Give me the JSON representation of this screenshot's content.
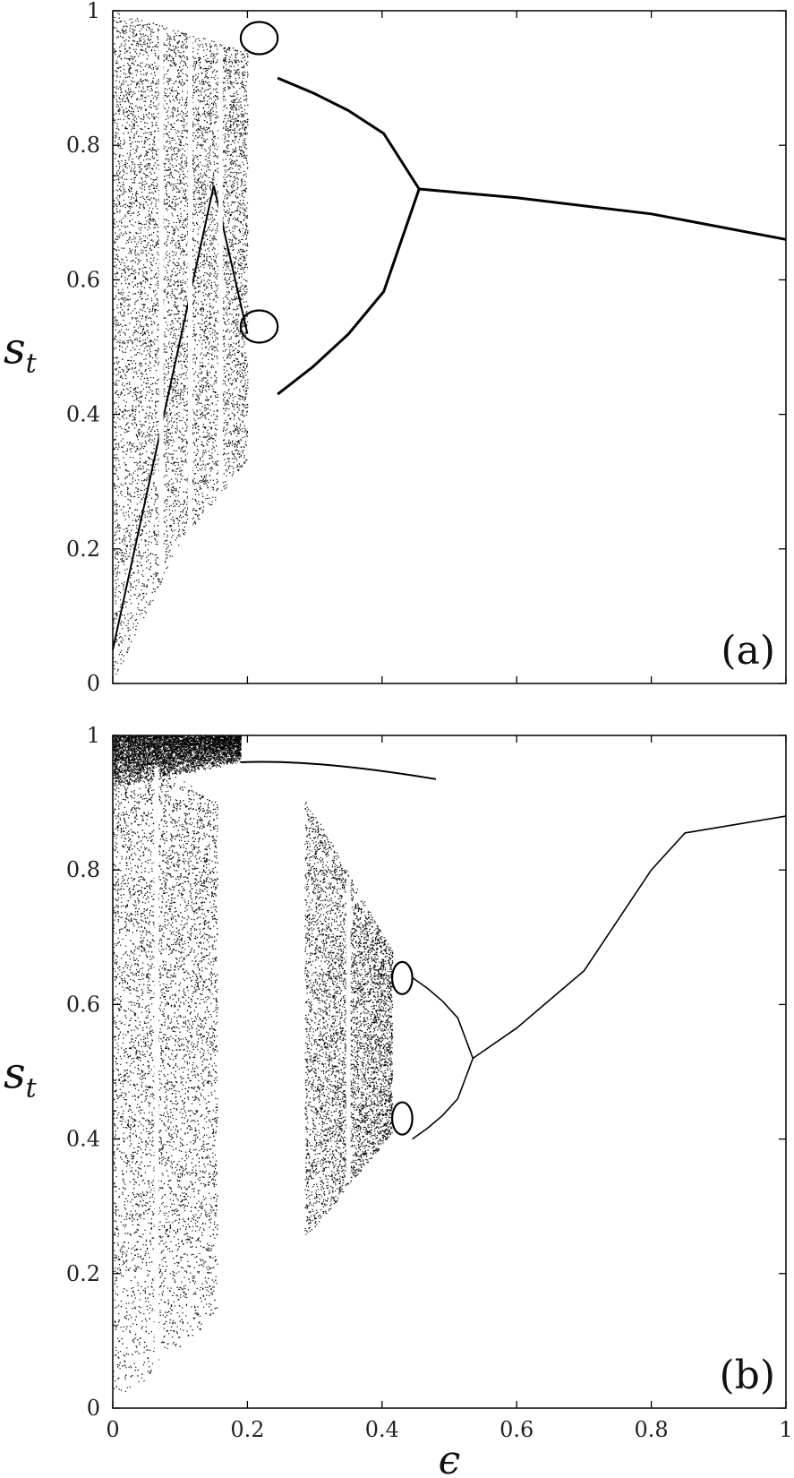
{
  "chart_data": [
    {
      "type": "scatter",
      "panel_label": "(a)",
      "ylabel": "s_t",
      "xlim": [
        0,
        1
      ],
      "ylim": [
        0,
        1
      ],
      "x_ticks": [
        0,
        0.2,
        0.4,
        0.6,
        0.8,
        1
      ],
      "x_tick_labels": [],
      "y_ticks": [
        0,
        0.2,
        0.4,
        0.6,
        0.8,
        1
      ],
      "y_tick_labels": [
        "0",
        "0.2",
        "0.4",
        "0.6",
        "0.8",
        "1"
      ],
      "chaotic_band": {
        "x_range": [
          0,
          0.2
        ],
        "upper": [
          [
            0,
            1.0
          ],
          [
            0.2,
            0.94
          ]
        ],
        "lower": [
          [
            0,
            0.0
          ],
          [
            0.1,
            0.21
          ],
          [
            0.2,
            0.33
          ]
        ]
      },
      "periodic_windows_x": [
        0.072,
        0.115,
        0.16
      ],
      "period_4": {
        "x_range": [
          0.19,
          0.245
        ],
        "upper": [
          0.97,
          0.86
        ],
        "lower": [
          0.52,
          0.34
        ]
      },
      "period_2": {
        "x_range": [
          0.245,
          0.455
        ],
        "upper_start": 0.9,
        "lower_start": 0.43,
        "merge_y": 0.735
      },
      "period_1": {
        "x": [
          0.455,
          0.6,
          0.8,
          1.0
        ],
        "y": [
          0.735,
          0.722,
          0.698,
          0.66
        ]
      }
    },
    {
      "type": "scatter",
      "panel_label": "(b)",
      "xlabel": "ϵ",
      "ylabel": "s_t",
      "xlim": [
        0,
        1
      ],
      "ylim": [
        0,
        1
      ],
      "x_ticks": [
        0,
        0.2,
        0.4,
        0.6,
        0.8,
        1
      ],
      "x_tick_labels": [
        "0",
        "0.2",
        "0.4",
        "0.6",
        "0.8",
        "1"
      ],
      "y_ticks": [
        0,
        0.2,
        0.4,
        0.6,
        0.8,
        1
      ],
      "y_tick_labels": [
        "0",
        "0.2",
        "0.4",
        "0.6",
        "0.8",
        "1"
      ],
      "chaotic_band_1": {
        "x_range": [
          0,
          0.155
        ],
        "upper": [
          [
            0,
            1.0
          ],
          [
            0.155,
            0.9
          ]
        ],
        "lower": [
          [
            0,
            0.0
          ],
          [
            0.155,
            0.14
          ]
        ]
      },
      "dense_top_band": {
        "x_range": [
          0,
          0.19
        ],
        "upper": 1.0,
        "lower_start": 0.92,
        "lower_end": 0.96
      },
      "upper_branch": {
        "x_range": [
          0.19,
          0.48
        ],
        "y_start": 0.96,
        "y_end": 0.935
      },
      "chaotic_band_2": {
        "x_range": [
          0.285,
          0.415
        ],
        "upper": [
          [
            0.285,
            0.91
          ],
          [
            0.415,
            0.68
          ]
        ],
        "lower": [
          [
            0.285,
            0.25
          ],
          [
            0.415,
            0.41
          ]
        ]
      },
      "periodic_windows_x": [
        0.065,
        0.35
      ],
      "period_4": {
        "x_range": [
          0.415,
          0.445
        ],
        "upper": [
          0.65,
          0.62
        ],
        "lower": [
          0.42,
          0.39
        ]
      },
      "period_2": {
        "x_range": [
          0.445,
          0.535
        ],
        "upper_start": 0.64,
        "lower_start": 0.4,
        "merge_y": 0.52
      },
      "period_1": {
        "x": [
          0.535,
          0.6,
          0.7,
          0.8,
          0.85,
          1.0
        ],
        "y": [
          0.52,
          0.565,
          0.65,
          0.8,
          0.855,
          0.88
        ]
      }
    }
  ]
}
